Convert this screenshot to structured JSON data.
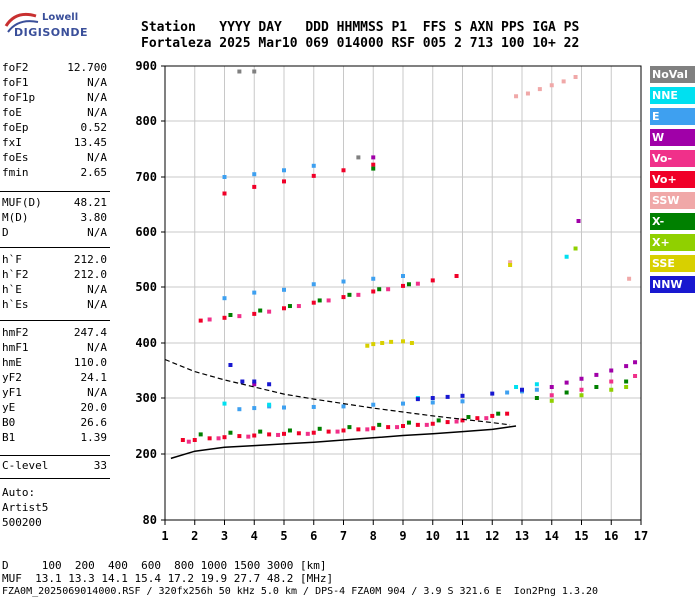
{
  "logo": {
    "line1": "Lowell",
    "line2": "DIGISONDE"
  },
  "header": {
    "line1": "Station   YYYY DAY   DDD HHMMSS P1  FFS S AXN PPS IGA PS",
    "line2": "Fortaleza 2025 Mar10 069 014000 RSF 005 2 713 100 10+ 22"
  },
  "params": {
    "group1": [
      {
        "name": "foF2",
        "value": "12.700"
      },
      {
        "name": "foF1",
        "value": "N/A"
      },
      {
        "name": "foF1p",
        "value": "N/A"
      },
      {
        "name": "foE",
        "value": "N/A"
      },
      {
        "name": "foEp",
        "value": "0.52"
      },
      {
        "name": "fxI",
        "value": "13.45"
      },
      {
        "name": "foEs",
        "value": "N/A"
      },
      {
        "name": "fmin",
        "value": "2.65"
      }
    ],
    "group2": [
      {
        "name": "MUF(D)",
        "value": "48.21"
      },
      {
        "name": "M(D)",
        "value": "3.80"
      },
      {
        "name": "D",
        "value": "N/A"
      }
    ],
    "group3": [
      {
        "name": "h`F",
        "value": "212.0"
      },
      {
        "name": "h`F2",
        "value": "212.0"
      },
      {
        "name": "h`E",
        "value": "N/A"
      },
      {
        "name": "h`Es",
        "value": "N/A"
      }
    ],
    "group4": [
      {
        "name": "hmF2",
        "value": "247.4"
      },
      {
        "name": "hmF1",
        "value": "N/A"
      },
      {
        "name": "hmE",
        "value": "110.0"
      },
      {
        "name": "yF2",
        "value": "24.1"
      },
      {
        "name": "yF1",
        "value": "N/A"
      },
      {
        "name": "yE",
        "value": "20.0"
      },
      {
        "name": "B0",
        "value": "26.6"
      },
      {
        "name": "B1",
        "value": "1.39"
      }
    ],
    "group5": [
      {
        "name": "C-level",
        "value": "33"
      }
    ]
  },
  "auto": {
    "line1": "Auto:",
    "line2": "Artist5",
    "line3": "500200"
  },
  "legend": [
    {
      "label": "NoVal",
      "color": "#808080"
    },
    {
      "label": "NNE",
      "color": "#00e0f0"
    },
    {
      "label": "E",
      "color": "#3ea0f0"
    },
    {
      "label": "W",
      "color": "#a000a8"
    },
    {
      "label": "Vo-",
      "color": "#f0308a"
    },
    {
      "label": "Vo+",
      "color": "#f00028"
    },
    {
      "label": "SSW",
      "color": "#f0a8a8"
    },
    {
      "label": "X-",
      "color": "#008000"
    },
    {
      "label": "X+",
      "color": "#90d000"
    },
    {
      "label": "SSE",
      "color": "#d8d000"
    },
    {
      "label": "NNW",
      "color": "#1818d0"
    }
  ],
  "chart_data": {
    "type": "scatter",
    "xlim": [
      1,
      17
    ],
    "ylim": [
      80,
      900
    ],
    "x_ticks": [
      1,
      2,
      3,
      4,
      5,
      6,
      7,
      8,
      9,
      10,
      11,
      12,
      13,
      14,
      15,
      16,
      17
    ],
    "y_ticks": [
      80,
      200,
      300,
      400,
      500,
      600,
      700,
      800,
      900
    ],
    "grid": true,
    "legend_placement": "right",
    "series": [
      {
        "name": "Vo+",
        "color": "#f00028",
        "points": [
          [
            1.6,
            225
          ],
          [
            2.0,
            225
          ],
          [
            2.5,
            228
          ],
          [
            3.0,
            230
          ],
          [
            3.5,
            232
          ],
          [
            4.0,
            233
          ],
          [
            4.5,
            235
          ],
          [
            5.0,
            236
          ],
          [
            5.5,
            237
          ],
          [
            6.0,
            238
          ],
          [
            6.5,
            240
          ],
          [
            7.0,
            242
          ],
          [
            7.5,
            244
          ],
          [
            8.0,
            246
          ],
          [
            8.5,
            248
          ],
          [
            9.0,
            250
          ],
          [
            9.5,
            252
          ],
          [
            10.0,
            254
          ],
          [
            10.5,
            257
          ],
          [
            11.0,
            260
          ],
          [
            11.5,
            264
          ],
          [
            12.0,
            268
          ],
          [
            12.5,
            272
          ],
          [
            2.2,
            440
          ],
          [
            3.0,
            445
          ],
          [
            4.0,
            452
          ],
          [
            5.0,
            462
          ],
          [
            6.0,
            472
          ],
          [
            7.0,
            482
          ],
          [
            8.0,
            492
          ],
          [
            9.0,
            502
          ],
          [
            10.0,
            512
          ],
          [
            10.8,
            520
          ],
          [
            3.0,
            670
          ],
          [
            4.0,
            682
          ],
          [
            5.0,
            692
          ],
          [
            6.0,
            702
          ],
          [
            7.0,
            712
          ],
          [
            8.0,
            722
          ]
        ]
      },
      {
        "name": "Vo-",
        "color": "#f0308a",
        "points": [
          [
            1.8,
            222
          ],
          [
            2.8,
            228
          ],
          [
            3.8,
            231
          ],
          [
            4.8,
            234
          ],
          [
            5.8,
            236
          ],
          [
            6.8,
            240
          ],
          [
            7.8,
            244
          ],
          [
            8.8,
            248
          ],
          [
            9.8,
            252
          ],
          [
            10.8,
            258
          ],
          [
            11.8,
            264
          ],
          [
            2.5,
            442
          ],
          [
            3.5,
            448
          ],
          [
            4.5,
            456
          ],
          [
            5.5,
            466
          ],
          [
            6.5,
            476
          ],
          [
            7.5,
            486
          ],
          [
            8.5,
            496
          ],
          [
            9.5,
            506
          ],
          [
            14.0,
            305
          ],
          [
            15.0,
            315
          ],
          [
            16.0,
            330
          ],
          [
            16.8,
            340
          ]
        ]
      },
      {
        "name": "X-",
        "color": "#008000",
        "points": [
          [
            2.2,
            235
          ],
          [
            3.2,
            238
          ],
          [
            4.2,
            240
          ],
          [
            5.2,
            242
          ],
          [
            6.2,
            245
          ],
          [
            7.2,
            248
          ],
          [
            8.2,
            252
          ],
          [
            9.2,
            256
          ],
          [
            10.2,
            260
          ],
          [
            11.2,
            266
          ],
          [
            12.2,
            272
          ],
          [
            3.2,
            450
          ],
          [
            4.2,
            458
          ],
          [
            5.2,
            466
          ],
          [
            6.2,
            476
          ],
          [
            7.2,
            486
          ],
          [
            8.2,
            496
          ],
          [
            9.2,
            505
          ],
          [
            8.0,
            715
          ],
          [
            13.5,
            300
          ],
          [
            14.5,
            310
          ],
          [
            15.5,
            320
          ],
          [
            16.5,
            330
          ]
        ]
      },
      {
        "name": "X+",
        "color": "#90d000",
        "points": [
          [
            14.0,
            295
          ],
          [
            15.0,
            305
          ],
          [
            16.0,
            315
          ],
          [
            16.5,
            320
          ],
          [
            14.8,
            570
          ]
        ]
      },
      {
        "name": "E",
        "color": "#3ea0f0",
        "points": [
          [
            3.5,
            280
          ],
          [
            4.0,
            282
          ],
          [
            4.5,
            285
          ],
          [
            5.0,
            283
          ],
          [
            6.0,
            284
          ],
          [
            7.0,
            285
          ],
          [
            8.0,
            288
          ],
          [
            9.0,
            290
          ],
          [
            10.0,
            292
          ],
          [
            11.0,
            294
          ],
          [
            12.5,
            310
          ],
          [
            13.0,
            312
          ],
          [
            13.5,
            315
          ],
          [
            3.0,
            480
          ],
          [
            4.0,
            490
          ],
          [
            5.0,
            495
          ],
          [
            6.0,
            505
          ],
          [
            7.0,
            510
          ],
          [
            8.0,
            515
          ],
          [
            9.0,
            520
          ],
          [
            3.0,
            700
          ],
          [
            4.0,
            705
          ],
          [
            5.0,
            712
          ],
          [
            6.0,
            720
          ]
        ]
      },
      {
        "name": "NNE",
        "color": "#00e0f0",
        "points": [
          [
            3.0,
            290
          ],
          [
            4.5,
            288
          ],
          [
            9.5,
            300
          ],
          [
            12.8,
            320
          ],
          [
            13.5,
            325
          ],
          [
            14.5,
            555
          ]
        ]
      },
      {
        "name": "W",
        "color": "#a000a8",
        "points": [
          [
            14.0,
            320
          ],
          [
            14.5,
            328
          ],
          [
            15.0,
            335
          ],
          [
            15.5,
            342
          ],
          [
            16.0,
            350
          ],
          [
            16.5,
            358
          ],
          [
            16.8,
            365
          ],
          [
            8.0,
            735
          ],
          [
            14.9,
            620
          ],
          [
            4.0,
            325
          ]
        ]
      },
      {
        "name": "NNW",
        "color": "#1818d0",
        "points": [
          [
            3.2,
            360
          ],
          [
            3.6,
            330
          ],
          [
            4.0,
            330
          ],
          [
            4.5,
            325
          ],
          [
            9.5,
            298
          ],
          [
            10.0,
            300
          ],
          [
            10.5,
            302
          ],
          [
            11.0,
            304
          ],
          [
            12.0,
            308
          ],
          [
            13.0,
            315
          ]
        ]
      },
      {
        "name": "SSW",
        "color": "#f0a8a8",
        "points": [
          [
            12.8,
            845
          ],
          [
            13.2,
            850
          ],
          [
            13.6,
            858
          ],
          [
            14.0,
            865
          ],
          [
            14.4,
            872
          ],
          [
            14.8,
            880
          ],
          [
            12.6,
            545
          ],
          [
            16.6,
            515
          ]
        ]
      },
      {
        "name": "SSE",
        "color": "#d8d000",
        "points": [
          [
            7.8,
            395
          ],
          [
            8.0,
            398
          ],
          [
            8.3,
            400
          ],
          [
            8.6,
            402
          ],
          [
            9.0,
            403
          ],
          [
            9.3,
            400
          ],
          [
            12.6,
            540
          ]
        ]
      },
      {
        "name": "NoVal",
        "color": "#808080",
        "points": [
          [
            7.5,
            735
          ],
          [
            3.5,
            890
          ],
          [
            4.0,
            890
          ]
        ]
      }
    ],
    "profile_lower": [
      [
        1.2,
        192
      ],
      [
        2.0,
        205
      ],
      [
        3.0,
        212
      ],
      [
        4.0,
        215
      ],
      [
        5.0,
        218
      ],
      [
        6.0,
        221
      ],
      [
        7.0,
        225
      ],
      [
        8.0,
        229
      ],
      [
        9.0,
        233
      ],
      [
        10.0,
        236
      ],
      [
        11.0,
        240
      ],
      [
        12.0,
        244
      ],
      [
        12.8,
        250
      ]
    ],
    "profile_upper": [
      [
        1.0,
        370
      ],
      [
        2.0,
        348
      ],
      [
        3.0,
        333
      ],
      [
        4.0,
        320
      ],
      [
        5.0,
        307
      ],
      [
        6.0,
        298
      ],
      [
        7.0,
        290
      ],
      [
        8.0,
        282
      ],
      [
        9.0,
        275
      ],
      [
        10.0,
        268
      ],
      [
        11.0,
        262
      ],
      [
        12.0,
        256
      ],
      [
        12.6,
        252
      ]
    ]
  },
  "footer": {
    "line1": "D     100  200  400  600  800 1000 1500 3000 [km]",
    "line2": "MUF  13.1 13.3 14.1 15.4 17.2 19.9 27.7 48.2 [MHz]",
    "line3": "FZA0M_2025069014000.RSF / 320fx256h 50 kHz 5.0 km / DPS-4 FZA0M 904 / 3.9 S 321.6 E  Ion2Png 1.3.20"
  }
}
